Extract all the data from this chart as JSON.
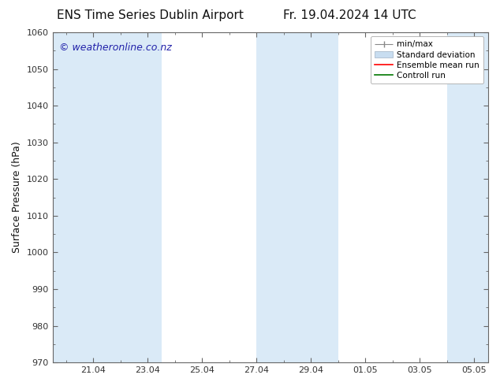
{
  "title_left": "ENS Time Series Dublin Airport",
  "title_right": "Fr. 19.04.2024 14 UTC",
  "ylabel": "Surface Pressure (hPa)",
  "ylim": [
    970,
    1060
  ],
  "yticks": [
    970,
    980,
    990,
    1000,
    1010,
    1020,
    1030,
    1040,
    1050,
    1060
  ],
  "xlim": [
    19.5,
    35.5
  ],
  "xtick_labels": [
    "21.04",
    "23.04",
    "25.04",
    "27.04",
    "29.04",
    "01.05",
    "03.05",
    "05.05"
  ],
  "xtick_positions": [
    21,
    23,
    25,
    27,
    29,
    31,
    33,
    35
  ],
  "shaded_bands": [
    {
      "x_start": 19.5,
      "x_end": 21.5
    },
    {
      "x_start": 21.5,
      "x_end": 23.5
    },
    {
      "x_start": 27.0,
      "x_end": 28.0
    },
    {
      "x_start": 28.0,
      "x_end": 30.0
    },
    {
      "x_start": 34.0,
      "x_end": 35.5
    }
  ],
  "band_color": "#daeaf7",
  "watermark_text": "© weatheronline.co.nz",
  "watermark_color": "#2222aa",
  "watermark_fontsize": 9,
  "bg_color": "#ffffff",
  "plot_bg_color": "#ffffff",
  "font_color": "#111111",
  "title_fontsize": 11,
  "axis_label_fontsize": 9,
  "tick_fontsize": 8,
  "legend_fontsize": 7.5,
  "spine_color": "#666666",
  "tick_color": "#333333"
}
